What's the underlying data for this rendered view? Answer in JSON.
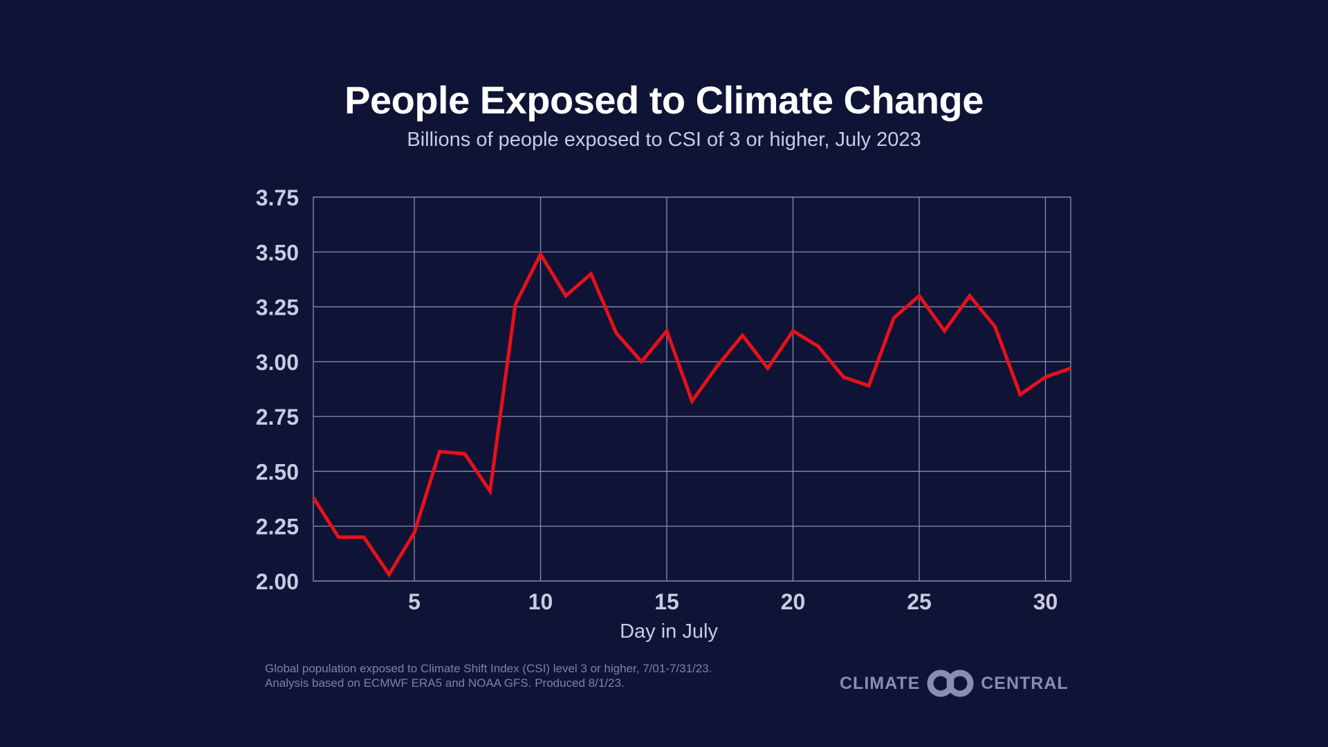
{
  "chart_data": {
    "type": "line",
    "title": "People Exposed to Climate Change",
    "subtitle": "Billions of people exposed to CSI of 3 or higher, July 2023",
    "xlabel": "Day in July",
    "ylabel": "",
    "xlim": [
      1,
      31
    ],
    "ylim": [
      2.0,
      3.75
    ],
    "xticks": [
      "5",
      "10",
      "15",
      "20",
      "25",
      "30"
    ],
    "yticks": [
      "2.00",
      "2.25",
      "2.50",
      "2.75",
      "3.00",
      "3.25",
      "3.50",
      "3.75"
    ],
    "grid": true,
    "x": [
      1,
      2,
      3,
      4,
      5,
      6,
      7,
      8,
      9,
      10,
      11,
      12,
      13,
      14,
      15,
      16,
      17,
      18,
      19,
      20,
      21,
      22,
      23,
      24,
      25,
      26,
      27,
      28,
      29,
      30,
      31
    ],
    "series": [
      {
        "values": [
          2.38,
          2.2,
          2.2,
          2.03,
          2.22,
          2.59,
          2.58,
          2.41,
          3.26,
          3.49,
          3.3,
          3.4,
          3.13,
          3.0,
          3.14,
          2.82,
          2.98,
          3.12,
          2.97,
          3.14,
          3.07,
          2.93,
          2.89,
          3.2,
          3.3,
          3.14,
          3.3,
          3.16,
          2.85,
          2.93,
          2.97
        ],
        "color": "#e8101a"
      }
    ]
  },
  "footer": {
    "line1": "Global population exposed to Climate Shift Index (CSI) level 3 or higher, 7/01-7/31/23.",
    "line2": "Analysis based on ECMWF ERA5 and NOAA GFS. Produced 8/1/23."
  },
  "logo": {
    "left": "CLIMATE",
    "right": "CENTRAL"
  },
  "colors": {
    "background": "#0f1437",
    "line": "#e8101a",
    "grid": "#8a8fb0"
  }
}
